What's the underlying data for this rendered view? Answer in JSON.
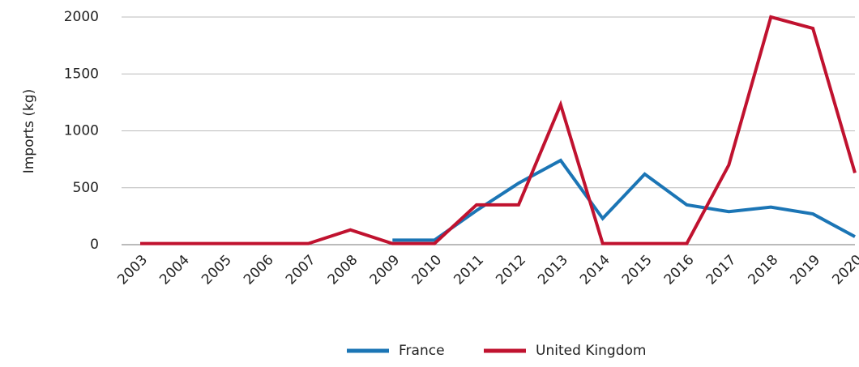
{
  "chart_data": {
    "type": "line",
    "y_label": "Imports (kg)",
    "categories": [
      "2003",
      "2004",
      "2005",
      "2006",
      "2007",
      "2008",
      "2009",
      "2010",
      "2011",
      "2012",
      "2013",
      "2014",
      "2015",
      "2016",
      "2017",
      "2018",
      "2019",
      "2020"
    ],
    "series": [
      {
        "name": "France",
        "color": "#1b75b5",
        "values": [
          null,
          null,
          null,
          null,
          null,
          null,
          40,
          40,
          300,
          540,
          740,
          230,
          620,
          350,
          290,
          330,
          270,
          70
        ]
      },
      {
        "name": "United Kingdom",
        "color": "#c0122f",
        "values": [
          10,
          10,
          10,
          10,
          10,
          130,
          10,
          10,
          350,
          350,
          1230,
          10,
          10,
          10,
          700,
          2000,
          1900,
          630
        ]
      }
    ],
    "ylim": [
      0,
      2000
    ],
    "yticks": [
      0,
      500,
      1000,
      1500,
      2000
    ],
    "grid": true,
    "legend": "bottom"
  }
}
